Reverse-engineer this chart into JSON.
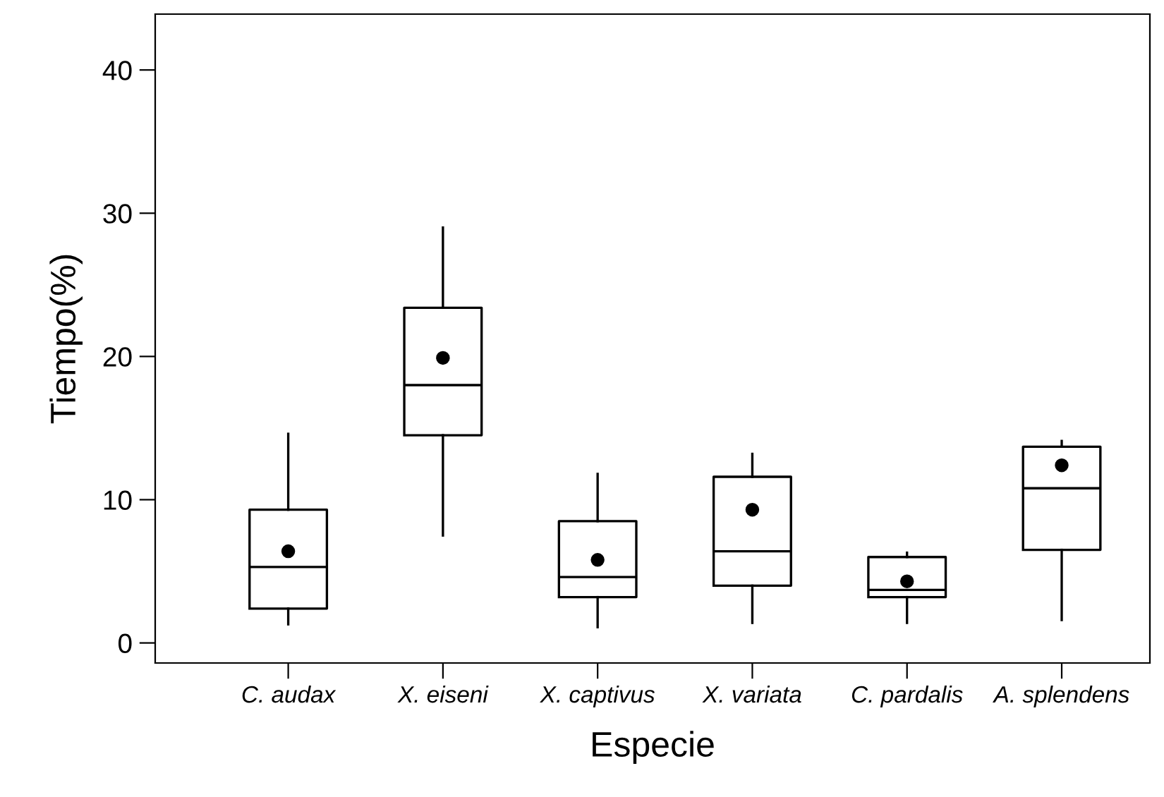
{
  "chart_data": {
    "type": "box",
    "xlabel": "Especie",
    "ylabel": "Tiempo(%)",
    "categories": [
      "C. audax",
      "X. eiseni",
      "X. captivus",
      "X. variata",
      "C. pardalis",
      "A. splendens"
    ],
    "boxes": [
      {
        "low": 1.3,
        "q1": 2.4,
        "median": 5.3,
        "q3": 9.3,
        "high": 14.6,
        "mean": 6.4
      },
      {
        "low": 7.5,
        "q1": 14.5,
        "median": 18.0,
        "q3": 23.4,
        "high": 29.0,
        "mean": 19.9
      },
      {
        "low": 1.1,
        "q1": 3.2,
        "median": 4.6,
        "q3": 8.5,
        "high": 11.8,
        "mean": 5.8
      },
      {
        "low": 1.4,
        "q1": 4.0,
        "median": 6.4,
        "q3": 11.6,
        "high": 13.2,
        "mean": 9.3
      },
      {
        "low": 1.4,
        "q1": 3.2,
        "median": 3.7,
        "q3": 6.0,
        "high": 6.3,
        "mean": 4.3
      },
      {
        "low": 1.6,
        "q1": 6.5,
        "median": 10.8,
        "q3": 13.7,
        "high": 14.1,
        "mean": 12.4
      }
    ],
    "color": "#000000",
    "ylim": [
      -1.4,
      43.9
    ],
    "yticks": [
      0,
      10,
      20,
      30,
      40
    ],
    "grid": false,
    "marker": "circle"
  }
}
